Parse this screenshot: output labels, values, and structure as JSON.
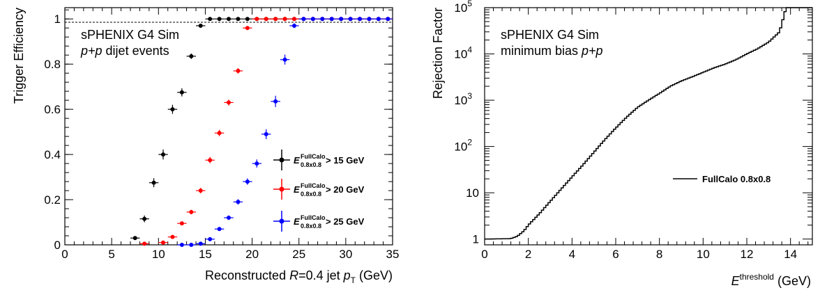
{
  "chart_data": [
    {
      "type": "scatter",
      "xlabel_prefix": "Reconstructed ",
      "xlabel_r": "R",
      "xlabel_mid": "=0.4 jet ",
      "xlabel_p": "p",
      "xlabel_sub": "T",
      "xlabel_unit": " (GeV)",
      "ylabel": "Trigger Efficiency",
      "xlim": [
        0,
        35
      ],
      "ylim": [
        0,
        1.05
      ],
      "xticks": [
        "0",
        "5",
        "10",
        "15",
        "20",
        "25",
        "30",
        "35"
      ],
      "yticks": [
        "0",
        "0.2",
        "0.4",
        "0.6",
        "0.8",
        "1"
      ],
      "annotation_line1": "sPHENIX G4 Sim",
      "annotation_line2_italic": "p+p",
      "annotation_line2_rest": " dijet events",
      "legend_position": "bottom-right",
      "series": [
        {
          "label_e": "E",
          "label_sup": "FullCalo",
          "label_sub": "0.8x0.8",
          "label_rest": " > 15 GeV",
          "color": "#000000",
          "x": [
            7.5,
            8.5,
            9.5,
            10.5,
            11.5,
            12.5,
            13.5,
            14.5,
            15.5,
            16.5,
            17.5,
            18.5,
            19.5,
            20.5,
            21.5,
            22.5,
            23.5,
            24.5,
            25.5,
            26.5,
            27.5,
            28.5,
            29.5,
            30.5,
            31.5,
            32.5,
            33.5,
            34.5
          ],
          "y": [
            0.03,
            0.115,
            0.275,
            0.4,
            0.6,
            0.675,
            0.835,
            0.97,
            1,
            1,
            1,
            1,
            1,
            1,
            1,
            1,
            1,
            1,
            1,
            1,
            1,
            1,
            1,
            1,
            1,
            1,
            1,
            1
          ],
          "yerr": [
            0.006,
            0.015,
            0.02,
            0.022,
            0.02,
            0.018,
            0.012,
            0.007,
            0,
            0,
            0,
            0,
            0,
            0,
            0,
            0,
            0,
            0,
            0,
            0,
            0,
            0,
            0,
            0,
            0,
            0,
            0,
            0
          ]
        },
        {
          "label_e": "E",
          "label_sup": "FullCalo",
          "label_sub": "0.8x0.8",
          "label_rest": " > 20 GeV",
          "color": "#ff0000",
          "x": [
            8.5,
            10.5,
            11.5,
            12.5,
            13.5,
            14.5,
            15.5,
            16.5,
            17.5,
            18.5,
            19.5,
            20.5,
            21.5,
            22.5,
            23.5,
            24.5,
            25.5,
            26.5,
            27.5,
            28.5,
            29.5,
            30.5,
            31.5,
            32.5,
            33.5,
            34.5
          ],
          "y": [
            0.005,
            0.01,
            0.035,
            0.095,
            0.145,
            0.24,
            0.375,
            0.495,
            0.63,
            0.77,
            0.96,
            1,
            1,
            1,
            1,
            1,
            1,
            1,
            1,
            1,
            1,
            1,
            1,
            1,
            1,
            1
          ],
          "yerr": [
            0.003,
            0.004,
            0.006,
            0.008,
            0.01,
            0.012,
            0.014,
            0.014,
            0.013,
            0.012,
            0.007,
            0,
            0,
            0,
            0,
            0,
            0,
            0,
            0,
            0,
            0,
            0,
            0,
            0,
            0,
            0
          ]
        },
        {
          "label_e": "E",
          "label_sup": "FullCalo",
          "label_sub": "0.8x0.8",
          "label_rest": " > 25 GeV",
          "color": "#0000ff",
          "x": [
            12.5,
            13.5,
            14.5,
            15.5,
            16.5,
            17.5,
            18.5,
            19.5,
            20.5,
            21.5,
            22.5,
            23.5,
            24.5,
            25.5,
            26.5,
            27.5,
            28.5,
            29.5,
            30.5,
            31.5,
            32.5,
            33.5,
            34.5
          ],
          "y": [
            0.0,
            0.0,
            0.005,
            0.025,
            0.07,
            0.12,
            0.19,
            0.28,
            0.36,
            0.49,
            0.635,
            0.82,
            0.97,
            1,
            1,
            1,
            1,
            1,
            1,
            1,
            1,
            1,
            1
          ],
          "yerr": [
            0.002,
            0.002,
            0.004,
            0.006,
            0.008,
            0.01,
            0.012,
            0.014,
            0.018,
            0.022,
            0.025,
            0.022,
            0.01,
            0,
            0,
            0,
            0,
            0,
            0,
            0,
            0,
            0,
            0
          ]
        }
      ]
    },
    {
      "type": "line",
      "xlabel_e": "E",
      "xlabel_sup": "threshold",
      "xlabel_unit": " (GeV)",
      "ylabel": "Rejection Factor",
      "xlim": [
        0,
        15
      ],
      "ylim": [
        0.75,
        100000
      ],
      "log_y": true,
      "xticks": [
        "0",
        "2",
        "4",
        "6",
        "8",
        "10",
        "12",
        "14"
      ],
      "yticks_base": [
        "1",
        "10",
        "10",
        "10",
        "10",
        "10"
      ],
      "yticks_exp": [
        "",
        "",
        "2",
        "3",
        "4",
        "5"
      ],
      "annotation_line1": "sPHENIX G4 Sim",
      "annotation_line2_rest": "minimum bias ",
      "annotation_line2_italic": "p+p",
      "legend_position": "center-right",
      "legend_label": "FullCalo 0.8x0.8",
      "series": [
        {
          "name": "FullCalo 0.8x0.8",
          "x": [
            0,
            1.2,
            1.5,
            1.8,
            2.0,
            2.5,
            3.0,
            3.5,
            4.0,
            4.5,
            5.0,
            5.5,
            6.0,
            6.5,
            7.0,
            7.5,
            8.0,
            8.5,
            9.0,
            9.5,
            10.0,
            10.5,
            11.0,
            11.5,
            12.0,
            12.5,
            13.0,
            13.5,
            13.8,
            14.5,
            15.0
          ],
          "y": [
            1,
            1.02,
            1.15,
            1.5,
            2.0,
            3.5,
            6.5,
            12,
            22,
            40,
            75,
            140,
            250,
            430,
            700,
            1000,
            1400,
            2000,
            2600,
            3200,
            4000,
            5000,
            6000,
            7500,
            10000,
            13000,
            18000,
            30000,
            100000,
            100000,
            100000
          ]
        }
      ]
    }
  ]
}
